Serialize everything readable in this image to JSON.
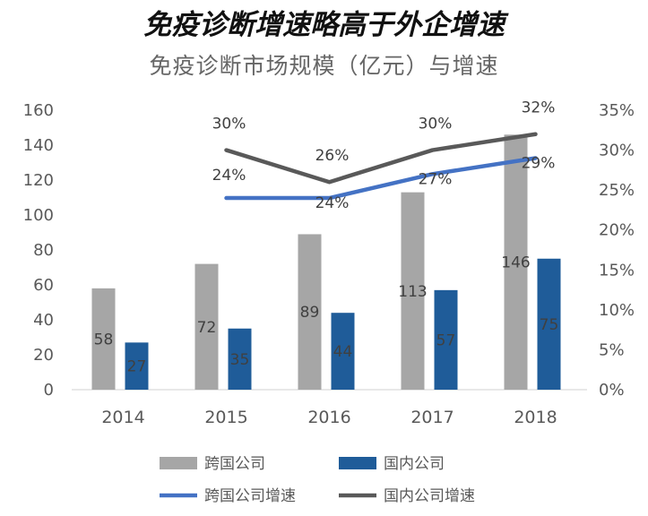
{
  "title": "免疫诊断增速略高于外企增速",
  "subtitle": "免疫诊断市场规模（亿元）与增速",
  "colors": {
    "foreign_bar": "#a6a6a6",
    "domestic_bar": "#1f5c99",
    "foreign_growth": "#4472c4",
    "domestic_growth": "#595959"
  },
  "chart_data": {
    "type": "bar",
    "title": "免疫诊断市场规模（亿元）与增速",
    "categories": [
      "2014",
      "2015",
      "2016",
      "2017",
      "2018"
    ],
    "series": [
      {
        "name": "跨国公司",
        "type": "bar",
        "axis": "left",
        "values": [
          58,
          72,
          89,
          113,
          146
        ],
        "labels": [
          "58",
          "72",
          "89",
          "113",
          "146"
        ]
      },
      {
        "name": "国内公司",
        "type": "bar",
        "axis": "left",
        "values": [
          27,
          35,
          44,
          57,
          75
        ],
        "labels": [
          "27",
          "35",
          "44",
          "57",
          "75"
        ]
      },
      {
        "name": "跨国公司增速",
        "type": "line",
        "axis": "right",
        "values": [
          null,
          0.24,
          0.24,
          0.27,
          0.29
        ],
        "labels": [
          "",
          "24%",
          "24%",
          "27%",
          "29%"
        ]
      },
      {
        "name": "国内公司增速",
        "type": "line",
        "axis": "right",
        "values": [
          null,
          0.3,
          0.26,
          0.3,
          0.32
        ],
        "labels": [
          "",
          "30%",
          "26%",
          "30%",
          "32%"
        ]
      }
    ],
    "y_left": {
      "min": 0,
      "max": 160,
      "ticks": [
        "0",
        "20",
        "40",
        "60",
        "80",
        "100",
        "120",
        "140",
        "160"
      ]
    },
    "y_right": {
      "min": 0,
      "max": 0.35,
      "ticks": [
        "0%",
        "5%",
        "10%",
        "15%",
        "20%",
        "25%",
        "30%",
        "35%"
      ]
    },
    "legend_position": "bottom",
    "grid": false
  }
}
